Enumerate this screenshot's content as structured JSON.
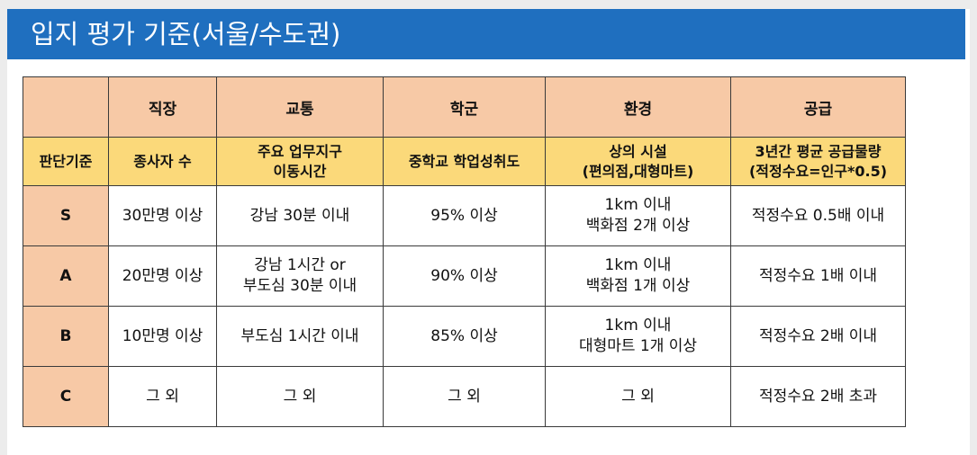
{
  "title": "입지 평가 기준(서울/수도권)",
  "colors": {
    "title_bar": "#1f6fbf",
    "header_bg": "#f7c9a6",
    "subheader_bg": "#fbd97a"
  },
  "table": {
    "headers": [
      "",
      "직장",
      "교통",
      "학군",
      "환경",
      "공급"
    ],
    "criteria": [
      "판단기준",
      "종사자 수",
      "주요 업무지구\n이동시간",
      "중학교 학업성취도",
      "상의 시설\n(편의점,대형마트)",
      "3년간 평균 공급물량\n(적정수요=인구*0.5)"
    ],
    "rows": [
      {
        "grade": "S",
        "cells": [
          "30만명 이상",
          "강남 30분 이내",
          "95% 이상",
          "1km 이내\n백화점 2개 이상",
          "적정수요 0.5배 이내"
        ]
      },
      {
        "grade": "A",
        "cells": [
          "20만명 이상",
          "강남 1시간 or\n부도심 30분 이내",
          "90% 이상",
          "1km 이내\n백화점 1개 이상",
          "적정수요 1배 이내"
        ]
      },
      {
        "grade": "B",
        "cells": [
          "10만명 이상",
          "부도심 1시간 이내",
          "85% 이상",
          "1km 이내\n대형마트 1개 이상",
          "적정수요 2배 이내"
        ]
      },
      {
        "grade": "C",
        "cells": [
          "그 외",
          "그 외",
          "그 외",
          "그 외",
          "적정수요 2배 초과"
        ]
      }
    ]
  }
}
